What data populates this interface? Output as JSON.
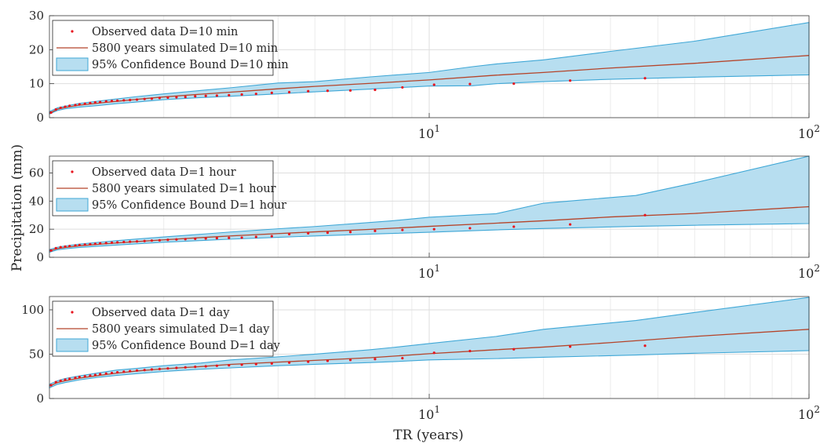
{
  "figure": {
    "ylabel": "Precipitation (mm)",
    "xlabel": "TR (years)"
  },
  "chart_data": [
    {
      "type": "line",
      "xscale": "log",
      "xlim": [
        1,
        100
      ],
      "ylim": [
        0,
        30
      ],
      "yticks": [
        0,
        10,
        20,
        30
      ],
      "xticklabels": [
        {
          "x": 10,
          "base": "10",
          "exp": "1"
        },
        {
          "x": 100,
          "base": "10",
          "exp": "2"
        }
      ],
      "grid": true,
      "legend_placement": "top-left",
      "legend": [
        {
          "label": "Observed data D=10 min",
          "kind": "dots"
        },
        {
          "label": "5800 years simulated D=10 min",
          "kind": "line"
        },
        {
          "label": "95% Confidence Bound D=10 min",
          "kind": "band"
        }
      ],
      "series": [
        {
          "name": "5800 years simulated D=10 min",
          "x": [
            1,
            1.05,
            1.1,
            1.2,
            1.35,
            1.5,
            1.7,
            2,
            2.5,
            3,
            4,
            5,
            7,
            10,
            15,
            20,
            30,
            50,
            100
          ],
          "y": [
            1.3,
            2.5,
            3.0,
            3.7,
            4.3,
            4.8,
            5.4,
            6.1,
            6.9,
            7.5,
            8.5,
            9.2,
            10.1,
            11.1,
            12.5,
            13.3,
            14.6,
            16.0,
            18.3
          ]
        },
        {
          "name": "95% Confidence Bound D=10 min",
          "x": [
            1,
            1.05,
            1.1,
            1.2,
            1.35,
            1.5,
            1.7,
            2,
            2.5,
            3,
            4,
            5,
            7,
            10,
            13,
            15,
            20,
            30,
            50,
            100
          ],
          "upper": [
            1.8,
            2.9,
            3.4,
            4.2,
            4.9,
            5.5,
            6.2,
            7.0,
            8.0,
            8.8,
            10.2,
            10.6,
            12.0,
            13.3,
            15.0,
            15.8,
            17.0,
            19.5,
            22.5,
            28.0
          ],
          "lower": [
            1.1,
            2.1,
            2.6,
            3.1,
            3.6,
            4.1,
            4.6,
            5.3,
            5.9,
            6.3,
            7.0,
            7.6,
            8.4,
            9.3,
            9.4,
            10.0,
            10.6,
            11.3,
            11.9,
            12.6
          ]
        }
      ],
      "observed": {
        "name": "Observed data D=10 min",
        "x": [
          1.01,
          1.04,
          1.07,
          1.1,
          1.13,
          1.17,
          1.2,
          1.24,
          1.28,
          1.32,
          1.36,
          1.41,
          1.46,
          1.51,
          1.57,
          1.63,
          1.7,
          1.78,
          1.86,
          1.95,
          2.05,
          2.16,
          2.28,
          2.42,
          2.58,
          2.76,
          2.97,
          3.21,
          3.5,
          3.85,
          4.28,
          4.8,
          5.4,
          6.2,
          7.2,
          8.5,
          10.3,
          12.8,
          16.7,
          23.5,
          37
        ],
        "y": [
          1.5,
          2.4,
          2.9,
          3.2,
          3.5,
          3.7,
          3.9,
          4.1,
          4.3,
          4.5,
          4.6,
          4.8,
          4.9,
          5.0,
          5.1,
          5.2,
          5.3,
          5.5,
          5.6,
          5.8,
          5.9,
          6.0,
          6.1,
          6.3,
          6.4,
          6.5,
          6.6,
          6.8,
          7.0,
          7.3,
          7.5,
          7.8,
          7.9,
          8.0,
          8.2,
          8.9,
          9.7,
          9.9,
          10.0,
          10.9,
          11.6
        ]
      }
    },
    {
      "type": "line",
      "xscale": "log",
      "xlim": [
        1,
        100
      ],
      "ylim": [
        0,
        72
      ],
      "yticks": [
        0,
        20,
        40,
        60
      ],
      "xticklabels": [
        {
          "x": 10,
          "base": "10",
          "exp": "1"
        },
        {
          "x": 100,
          "base": "10",
          "exp": "2"
        }
      ],
      "grid": true,
      "legend_placement": "top-left",
      "legend": [
        {
          "label": "Observed data D=1 hour",
          "kind": "dots"
        },
        {
          "label": "5800 years simulated D=1 hour",
          "kind": "line"
        },
        {
          "label": "95% Confidence Bound D=1 hour",
          "kind": "band"
        }
      ],
      "series": [
        {
          "name": "5800 years simulated D=1 hour",
          "x": [
            1,
            1.05,
            1.1,
            1.2,
            1.35,
            1.5,
            1.7,
            2,
            2.5,
            3,
            4,
            5,
            7,
            10,
            15,
            20,
            30,
            50,
            100
          ],
          "y": [
            4.5,
            6.2,
            7.0,
            8.2,
            9.3,
            10.2,
            11.2,
            12.4,
            14.0,
            15.2,
            16.9,
            18.1,
            19.9,
            22.0,
            24.3,
            26.0,
            28.7,
            31.2,
            36.0
          ]
        },
        {
          "name": "95% Confidence Bound D=1 hour",
          "x": [
            1,
            1.05,
            1.1,
            1.2,
            1.35,
            1.5,
            1.7,
            2,
            2.5,
            3,
            4,
            5,
            7,
            8,
            10,
            15,
            20,
            35,
            50,
            100
          ],
          "upper": [
            5.5,
            7.2,
            8.1,
            9.4,
            10.7,
            11.8,
            13.0,
            14.5,
            16.4,
            18.0,
            20.3,
            21.9,
            24.8,
            26.0,
            28.5,
            31.0,
            38.5,
            44.0,
            53.0,
            72.0
          ],
          "lower": [
            3.6,
            5.3,
            6.0,
            7.0,
            7.9,
            8.7,
            9.6,
            10.7,
            11.9,
            12.9,
            14.2,
            15.2,
            16.5,
            17.0,
            17.8,
            19.5,
            20.5,
            22.0,
            22.8,
            24.0
          ]
        }
      ],
      "observed": {
        "name": "Observed data D=1 hour",
        "x": [
          1.01,
          1.04,
          1.07,
          1.1,
          1.13,
          1.17,
          1.2,
          1.24,
          1.28,
          1.32,
          1.36,
          1.41,
          1.46,
          1.51,
          1.57,
          1.63,
          1.7,
          1.78,
          1.86,
          1.95,
          2.05,
          2.16,
          2.28,
          2.42,
          2.58,
          2.76,
          2.97,
          3.21,
          3.5,
          3.85,
          4.28,
          4.8,
          5.4,
          6.2,
          7.2,
          8.5,
          10.3,
          12.8,
          16.7,
          23.5,
          37
        ],
        "y": [
          4.8,
          6.5,
          7.2,
          7.6,
          8.0,
          8.4,
          8.7,
          9.0,
          9.3,
          9.6,
          9.9,
          10.1,
          10.4,
          10.6,
          10.9,
          11.1,
          11.3,
          11.6,
          11.9,
          12.1,
          12.4,
          12.7,
          12.9,
          13.2,
          13.4,
          13.6,
          13.8,
          14.0,
          14.5,
          15.0,
          16.5,
          17.1,
          17.5,
          18.0,
          18.8,
          19.5,
          20.0,
          20.7,
          21.8,
          23.4,
          30.0
        ]
      }
    },
    {
      "type": "line",
      "xscale": "log",
      "xlim": [
        1,
        100
      ],
      "ylim": [
        0,
        115
      ],
      "yticks": [
        0,
        50,
        100
      ],
      "xticklabels": [
        {
          "x": 10,
          "base": "10",
          "exp": "1"
        },
        {
          "x": 100,
          "base": "10",
          "exp": "2"
        }
      ],
      "grid": true,
      "legend_placement": "top-left",
      "legend": [
        {
          "label": "Observed data D=1 day",
          "kind": "dots"
        },
        {
          "label": "5800 years simulated D=1 day",
          "kind": "line"
        },
        {
          "label": "95% Confidence Bound D=1 day",
          "kind": "band"
        }
      ],
      "series": [
        {
          "name": "5800 years simulated D=1 day",
          "x": [
            1,
            1.05,
            1.1,
            1.2,
            1.35,
            1.5,
            1.7,
            2,
            2.5,
            3,
            4,
            5,
            7,
            10,
            15,
            20,
            30,
            50,
            100
          ],
          "y": [
            14,
            18,
            20,
            23,
            26,
            28.5,
            31,
            33.5,
            36,
            38.5,
            41,
            43,
            46,
            50.5,
            55,
            58,
            63,
            70,
            78
          ]
        },
        {
          "name": "95% Confidence Bound D=1 day",
          "x": [
            1,
            1.05,
            1.1,
            1.2,
            1.35,
            1.5,
            1.7,
            2,
            2.5,
            3,
            4,
            5,
            7,
            8,
            10,
            15,
            20,
            35,
            50,
            100
          ],
          "upper": [
            16,
            20,
            22.5,
            25.5,
            29,
            32,
            34,
            37,
            40,
            43.5,
            47,
            50,
            55,
            57.5,
            62,
            70,
            78,
            88,
            97,
            114
          ],
          "lower": [
            12,
            16,
            18,
            21,
            24,
            26,
            28,
            30.5,
            33,
            34.5,
            37,
            38.5,
            40.5,
            41.5,
            43.5,
            45,
            46.5,
            49,
            51,
            54
          ]
        }
      ],
      "observed": {
        "name": "Observed data D=1 day",
        "x": [
          1.01,
          1.04,
          1.07,
          1.1,
          1.13,
          1.17,
          1.2,
          1.24,
          1.28,
          1.32,
          1.36,
          1.41,
          1.46,
          1.51,
          1.57,
          1.63,
          1.7,
          1.78,
          1.86,
          1.95,
          2.05,
          2.16,
          2.28,
          2.42,
          2.58,
          2.76,
          2.97,
          3.21,
          3.5,
          3.85,
          4.28,
          4.8,
          5.4,
          6.2,
          7.2,
          8.5,
          10.3,
          12.8,
          16.7,
          23.5,
          37
        ],
        "y": [
          15,
          18.5,
          20,
          21.2,
          22.3,
          23.3,
          24.2,
          25.0,
          25.8,
          26.6,
          27.4,
          28.1,
          28.8,
          29.5,
          30.2,
          30.9,
          31.5,
          32.1,
          32.7,
          33.3,
          33.9,
          34.5,
          35.1,
          35.7,
          36.3,
          36.9,
          37.5,
          38.1,
          38.8,
          39.5,
          40.5,
          41.5,
          42.5,
          43.5,
          44.5,
          45.5,
          51.5,
          53.5,
          55.5,
          58.5,
          59.5
        ]
      }
    }
  ]
}
